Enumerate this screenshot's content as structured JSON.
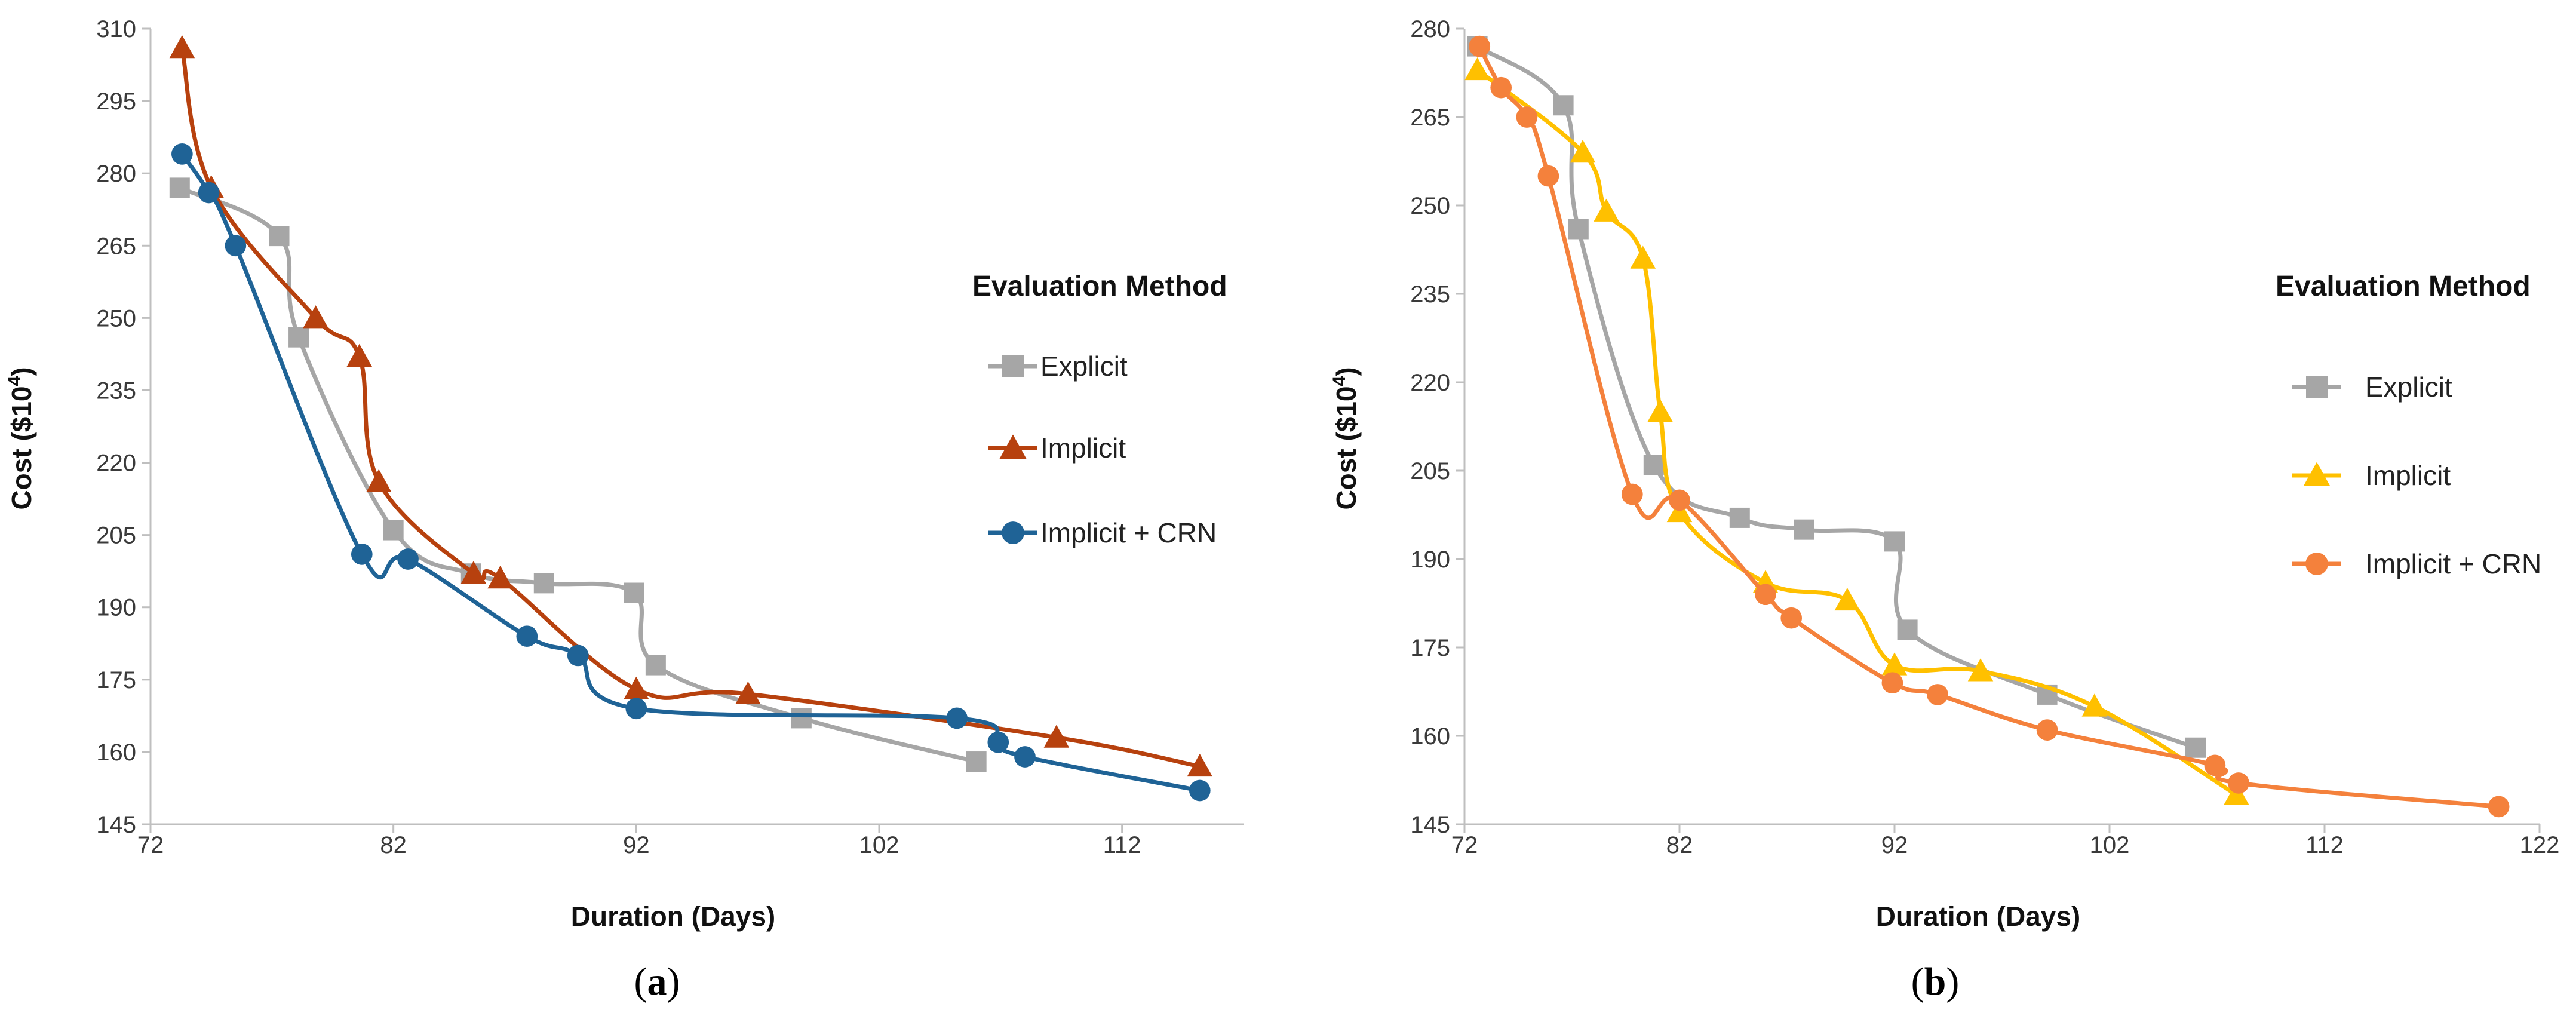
{
  "chart_data": [
    {
      "type": "line",
      "panel_label": "a",
      "xlabel": "Duration (Days)",
      "ylabel_main": "Cost ($10",
      "ylabel_sup": "4",
      "ylabel_end": ")",
      "xlim": [
        72,
        117
      ],
      "ylim": [
        145,
        310
      ],
      "xticks": [
        "72",
        "82",
        "92",
        "102",
        "112"
      ],
      "yticks": [
        "145",
        "160",
        "175",
        "190",
        "205",
        "220",
        "235",
        "250",
        "265",
        "280",
        "295",
        "310"
      ],
      "grid": false,
      "legend_title": "Evaluation Method",
      "legend_position": "right",
      "series": [
        {
          "name": "Explicit",
          "color": "#a6a6a6",
          "marker": "square",
          "points": [
            [
              73.2,
              277
            ],
            [
              77.3,
              267
            ],
            [
              78.1,
              246
            ],
            [
              82.0,
              206
            ],
            [
              85.2,
              197
            ],
            [
              88.2,
              195
            ],
            [
              91.9,
              193
            ],
            [
              92.8,
              178
            ],
            [
              98.8,
              167
            ],
            [
              106.0,
              158
            ]
          ]
        },
        {
          "name": "Implicit",
          "color": "#b7410e",
          "marker": "triangle",
          "points": [
            [
              73.3,
              306
            ],
            [
              74.5,
              277
            ],
            [
              78.8,
              250
            ],
            [
              80.6,
              242
            ],
            [
              81.4,
              216
            ],
            [
              85.3,
              197
            ],
            [
              86.4,
              196
            ],
            [
              92.0,
              173
            ],
            [
              96.6,
              172
            ],
            [
              109.3,
              163
            ],
            [
              115.2,
              157
            ]
          ]
        },
        {
          "name": "Implicit + CRN",
          "color": "#1f6396",
          "marker": "circle",
          "points": [
            [
              73.3,
              284
            ],
            [
              74.4,
              276
            ],
            [
              75.5,
              265
            ],
            [
              80.7,
              201
            ],
            [
              82.6,
              200
            ],
            [
              87.5,
              184
            ],
            [
              89.6,
              180
            ],
            [
              92.0,
              169
            ],
            [
              105.2,
              167
            ],
            [
              106.9,
              162
            ],
            [
              108.0,
              159
            ],
            [
              115.2,
              152
            ]
          ]
        }
      ]
    },
    {
      "type": "line",
      "panel_label": "b",
      "xlabel": "Duration (Days)",
      "ylabel_main": "Cost ($10",
      "ylabel_sup": "4",
      "ylabel_end": ")",
      "xlim": [
        72,
        122
      ],
      "ylim": [
        145,
        280
      ],
      "xticks": [
        "72",
        "82",
        "92",
        "102",
        "112",
        "122"
      ],
      "yticks": [
        "145",
        "160",
        "175",
        "190",
        "205",
        "220",
        "235",
        "250",
        "265",
        "280"
      ],
      "grid": false,
      "legend_title": "Evaluation Method",
      "legend_position": "right",
      "series": [
        {
          "name": "Explicit",
          "color": "#a6a6a6",
          "marker": "square",
          "points": [
            [
              72.6,
              277
            ],
            [
              76.6,
              267
            ],
            [
              77.3,
              246
            ],
            [
              80.8,
              206
            ],
            [
              84.8,
              197
            ],
            [
              87.8,
              195
            ],
            [
              92.0,
              193
            ],
            [
              92.6,
              178
            ],
            [
              99.1,
              167
            ],
            [
              106.0,
              158
            ]
          ]
        },
        {
          "name": "Implicit",
          "color": "#ffc000",
          "marker": "triangle",
          "points": [
            [
              72.6,
              273
            ],
            [
              77.5,
              259
            ],
            [
              78.6,
              249
            ],
            [
              80.3,
              241
            ],
            [
              81.1,
              215
            ],
            [
              82.0,
              198
            ],
            [
              86.0,
              186
            ],
            [
              89.8,
              183
            ],
            [
              92.0,
              172
            ],
            [
              96.0,
              171
            ],
            [
              101.3,
              165
            ],
            [
              107.9,
              150
            ]
          ]
        },
        {
          "name": "Implicit + CRN",
          "color": "#f4813c",
          "marker": "circle",
          "points": [
            [
              72.7,
              277
            ],
            [
              73.7,
              270
            ],
            [
              74.9,
              265
            ],
            [
              75.9,
              255
            ],
            [
              79.8,
              201
            ],
            [
              82.0,
              200
            ],
            [
              86.0,
              184
            ],
            [
              87.2,
              180
            ],
            [
              91.9,
              169
            ],
            [
              94.0,
              167
            ],
            [
              99.1,
              161
            ],
            [
              106.9,
              155
            ],
            [
              108.0,
              152
            ],
            [
              120.1,
              148
            ]
          ]
        }
      ]
    }
  ]
}
